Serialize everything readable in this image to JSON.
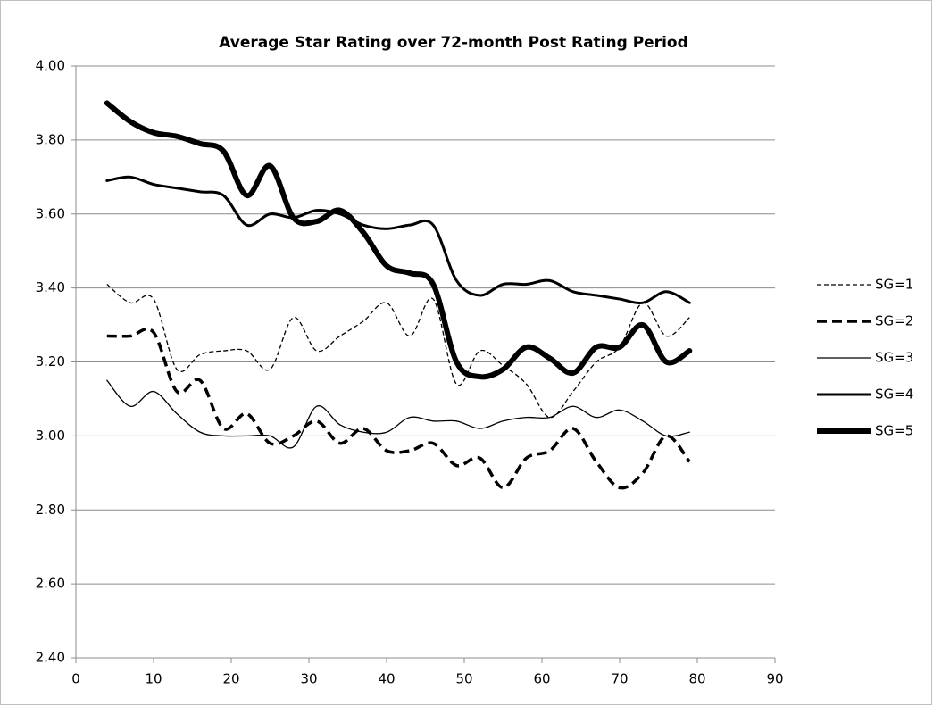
{
  "chart_data": {
    "type": "line",
    "title": "Average Star Rating over 72-month Post Rating Period",
    "x": [
      4,
      7,
      10,
      13,
      16,
      19,
      22,
      25,
      28,
      31,
      34,
      37,
      40,
      43,
      46,
      49,
      52,
      55,
      58,
      61,
      64,
      67,
      70,
      73,
      76,
      79
    ],
    "series": [
      {
        "name": "SG=1",
        "color": "#000000",
        "values": [
          3.41,
          3.36,
          3.37,
          3.18,
          3.22,
          3.23,
          3.23,
          3.18,
          3.32,
          3.23,
          3.27,
          3.31,
          3.36,
          3.27,
          3.37,
          3.14,
          3.23,
          3.19,
          3.14,
          3.05,
          3.12,
          3.2,
          3.24,
          3.36,
          3.27,
          3.32
        ]
      },
      {
        "name": "SG=2",
        "color": "#000000",
        "values": [
          3.27,
          3.27,
          3.28,
          3.12,
          3.15,
          3.02,
          3.06,
          2.98,
          3.0,
          3.04,
          2.98,
          3.02,
          2.96,
          2.96,
          2.98,
          2.92,
          2.94,
          2.86,
          2.94,
          2.96,
          3.02,
          2.93,
          2.86,
          2.9,
          3.0,
          2.93
        ]
      },
      {
        "name": "SG=3",
        "color": "#000000",
        "values": [
          3.15,
          3.08,
          3.12,
          3.06,
          3.01,
          3.0,
          3.0,
          3.0,
          2.97,
          3.08,
          3.03,
          3.01,
          3.01,
          3.05,
          3.04,
          3.04,
          3.02,
          3.04,
          3.05,
          3.05,
          3.08,
          3.05,
          3.07,
          3.04,
          3.0,
          3.01
        ]
      },
      {
        "name": "SG=4",
        "color": "#000000",
        "values": [
          3.69,
          3.7,
          3.68,
          3.67,
          3.66,
          3.65,
          3.57,
          3.6,
          3.59,
          3.61,
          3.6,
          3.57,
          3.56,
          3.57,
          3.57,
          3.42,
          3.38,
          3.41,
          3.41,
          3.42,
          3.39,
          3.38,
          3.37,
          3.36,
          3.39,
          3.36
        ]
      },
      {
        "name": "SG=5",
        "color": "#000000",
        "values": [
          3.9,
          3.85,
          3.82,
          3.81,
          3.79,
          3.77,
          3.65,
          3.73,
          3.59,
          3.58,
          3.61,
          3.55,
          3.46,
          3.44,
          3.41,
          3.2,
          3.16,
          3.18,
          3.24,
          3.21,
          3.17,
          3.24,
          3.24,
          3.3,
          3.2,
          3.23
        ]
      }
    ],
    "xlim": [
      0,
      90
    ],
    "xticks": [
      0,
      10,
      20,
      30,
      40,
      50,
      60,
      70,
      80,
      90
    ],
    "ylim": [
      2.4,
      4.0
    ],
    "yticks": [
      {
        "value": 2.4,
        "label": "2.40"
      },
      {
        "value": 2.6,
        "label": "2.60"
      },
      {
        "value": 2.8,
        "label": "2.80"
      },
      {
        "value": 3.0,
        "label": "3.00"
      },
      {
        "value": 3.2,
        "label": "3.20"
      },
      {
        "value": 3.4,
        "label": "3.40"
      },
      {
        "value": 3.6,
        "label": "3.60"
      },
      {
        "value": 3.8,
        "label": "3.80"
      },
      {
        "value": 4.0,
        "label": "4.00"
      }
    ],
    "grid": true,
    "legend": "right"
  }
}
